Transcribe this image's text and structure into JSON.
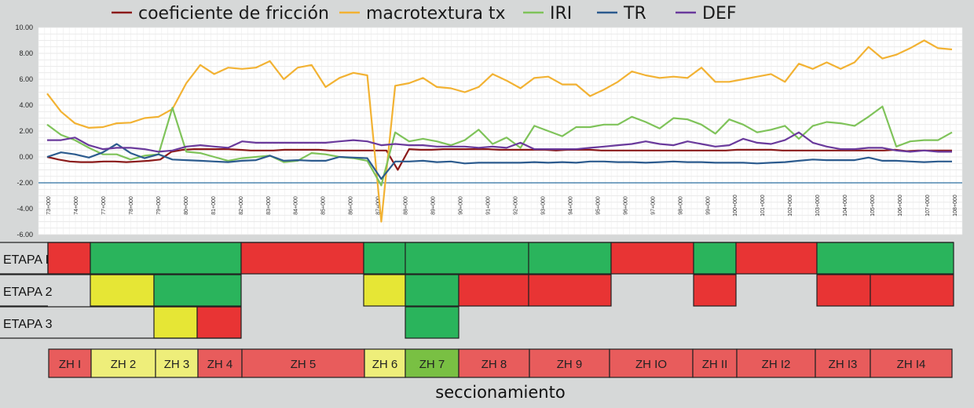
{
  "chart_data": {
    "type": "line",
    "legend": [
      {
        "name": "coeficiente de fricción",
        "color": "#8b1a1a"
      },
      {
        "name": "macrotextura tx",
        "color": "#f2b233"
      },
      {
        "name": "IRI",
        "color": "#7fc35a"
      },
      {
        "name": "TR",
        "color": "#2c5b8e"
      },
      {
        "name": "DEF",
        "color": "#6a3a9c"
      }
    ],
    "legend_position": "top",
    "ylim": [
      -6,
      10
    ],
    "y_ticks": [
      "10.00",
      "8.00",
      "6.00",
      "4.00",
      "2.00",
      "0.00",
      "-2.00",
      "-4.00",
      "-6.00"
    ],
    "x_ticks": [
      "73+000",
      "74+000",
      "77+000",
      "78+000",
      "79+000",
      "80+000",
      "81+000",
      "82+000",
      "83+000",
      "84+000",
      "85+000",
      "86+000",
      "87+000",
      "88+000",
      "89+000",
      "90+000",
      "91+000",
      "92+000",
      "93+000",
      "94+000",
      "95+000",
      "96+000",
      "97+000",
      "98+000",
      "99+000",
      "100+000",
      "101+000",
      "102+000",
      "103+000",
      "104+000",
      "105+000",
      "106+000",
      "107+000",
      "108+000"
    ],
    "threshold_line": {
      "value": -2.0,
      "color": "#2c6fa0"
    },
    "grid": true,
    "series": [
      {
        "name": "coeficiente de fricción",
        "color": "#8b1a1a",
        "values": [
          0.0,
          -0.2,
          -0.35,
          -0.4,
          -0.4,
          -0.35,
          -0.35,
          -0.4,
          -0.35,
          -0.3,
          -0.2,
          0.4,
          0.55,
          0.6,
          0.6,
          0.6,
          0.6,
          0.55,
          0.5,
          0.5,
          0.5,
          0.55,
          0.55,
          0.55,
          0.55,
          0.5,
          0.5,
          0.5,
          0.5,
          0.5,
          0.5,
          -1.0,
          0.6,
          0.55,
          0.55,
          0.6,
          0.6,
          0.6,
          0.6,
          0.6,
          0.55,
          0.55,
          0.55,
          0.55,
          0.55,
          0.5,
          0.55,
          0.55,
          0.55,
          0.5,
          0.5,
          0.5,
          0.5,
          0.5,
          0.5,
          0.5,
          0.5,
          0.5,
          0.5,
          0.5,
          0.5,
          0.55,
          0.55,
          0.55,
          0.55,
          0.5,
          0.5,
          0.5,
          0.5,
          0.5,
          0.5,
          0.5,
          0.5,
          0.5,
          0.5,
          0.55,
          0.45,
          0.5,
          0.5,
          0.5,
          0.5
        ]
      },
      {
        "name": "macrotextura tx",
        "color": "#f2b233",
        "values": [
          4.9,
          3.5,
          2.6,
          2.25,
          2.3,
          2.6,
          2.65,
          3.0,
          3.1,
          3.7,
          5.7,
          7.1,
          6.4,
          6.9,
          6.8,
          6.9,
          7.4,
          6.0,
          6.9,
          7.1,
          5.4,
          6.1,
          6.5,
          6.3,
          -5.0,
          5.5,
          5.7,
          6.1,
          5.4,
          5.3,
          5.0,
          5.4,
          6.4,
          5.9,
          5.3,
          6.1,
          6.2,
          5.6,
          5.6,
          4.7,
          5.2,
          5.8,
          6.6,
          6.3,
          6.1,
          6.2,
          6.1,
          6.9,
          5.8,
          5.8,
          6.0,
          6.2,
          6.4,
          5.8,
          7.2,
          6.8,
          7.3,
          6.8,
          7.3,
          8.5,
          7.6,
          7.9,
          8.4,
          9.0,
          8.4,
          8.3
        ]
      },
      {
        "name": "IRI",
        "color": "#7fc35a",
        "values": [
          2.5,
          1.7,
          1.3,
          0.7,
          0.2,
          0.2,
          -0.2,
          0.1,
          0.2,
          3.8,
          0.4,
          0.3,
          0.0,
          -0.3,
          -0.1,
          0.0,
          0.1,
          -0.4,
          -0.3,
          0.3,
          0.2,
          0.0,
          -0.1,
          -0.3,
          -2.2,
          1.9,
          1.2,
          1.4,
          1.2,
          0.9,
          1.3,
          2.1,
          1.0,
          1.5,
          0.7,
          2.4,
          2.0,
          1.6,
          2.3,
          2.3,
          2.5,
          2.5,
          3.1,
          2.7,
          2.2,
          3.0,
          2.9,
          2.5,
          1.8,
          2.9,
          2.5,
          1.9,
          2.1,
          2.4,
          1.4,
          2.4,
          2.7,
          2.6,
          2.4,
          3.1,
          3.9,
          0.8,
          1.2,
          1.3,
          1.3,
          1.9
        ]
      },
      {
        "name": "TR",
        "color": "#2c5b8e",
        "values": [
          0.0,
          0.35,
          0.2,
          -0.05,
          0.35,
          1.0,
          0.3,
          -0.1,
          0.2,
          -0.2,
          -0.25,
          -0.3,
          -0.35,
          -0.4,
          -0.3,
          -0.25,
          0.1,
          -0.3,
          -0.25,
          -0.3,
          -0.3,
          0.0,
          -0.05,
          -0.1,
          -1.7,
          -0.35,
          -0.35,
          -0.3,
          -0.4,
          -0.35,
          -0.5,
          -0.45,
          -0.45,
          -0.45,
          -0.45,
          -0.4,
          -0.45,
          -0.4,
          -0.45,
          -0.35,
          -0.35,
          -0.4,
          -0.4,
          -0.45,
          -0.4,
          -0.35,
          -0.4,
          -0.4,
          -0.45,
          -0.45,
          -0.45,
          -0.5,
          -0.45,
          -0.4,
          -0.3,
          -0.2,
          -0.25,
          -0.25,
          -0.25,
          -0.05,
          -0.3,
          -0.3,
          -0.35,
          -0.4,
          -0.35,
          -0.35
        ]
      },
      {
        "name": "DEF",
        "color": "#6a3a9c",
        "values": [
          1.3,
          1.3,
          1.5,
          0.9,
          0.6,
          0.7,
          0.7,
          0.6,
          0.4,
          0.5,
          0.8,
          0.9,
          0.8,
          0.7,
          1.2,
          1.1,
          1.1,
          1.1,
          1.1,
          1.1,
          1.1,
          1.2,
          1.3,
          1.2,
          0.9,
          1.0,
          0.9,
          0.9,
          0.8,
          0.8,
          0.8,
          0.7,
          0.8,
          0.7,
          1.1,
          0.6,
          0.6,
          0.6,
          0.6,
          0.7,
          0.8,
          0.9,
          1.0,
          1.2,
          1.0,
          0.9,
          1.2,
          1.0,
          0.8,
          0.9,
          1.4,
          1.1,
          1.0,
          1.3,
          1.9,
          1.1,
          0.8,
          0.6,
          0.6,
          0.7,
          0.7,
          0.5,
          0.4,
          0.5,
          0.4,
          0.4
        ]
      }
    ]
  },
  "etapas": {
    "rows": [
      {
        "label": "ETAPA I",
        "segments": [
          {
            "start": 61,
            "end": 115,
            "color": "#e83434"
          },
          {
            "start": 115,
            "end": 307,
            "color": "#2ab45c"
          },
          {
            "start": 307,
            "end": 463,
            "color": "#e83434"
          },
          {
            "start": 463,
            "end": 516,
            "color": "#2ab45c"
          },
          {
            "start": 516,
            "end": 673,
            "color": "#2ab45c"
          },
          {
            "start": 673,
            "end": 778,
            "color": "#2ab45c"
          },
          {
            "start": 778,
            "end": 883,
            "color": "#e83434"
          },
          {
            "start": 883,
            "end": 937,
            "color": "#2ab45c"
          },
          {
            "start": 937,
            "end": 1040,
            "color": "#e83434"
          },
          {
            "start": 1040,
            "end": 1214,
            "color": "#2ab45c"
          }
        ]
      },
      {
        "label": "ETAPA 2",
        "segments": [
          {
            "start": 115,
            "end": 196,
            "color": "#e6e635"
          },
          {
            "start": 196,
            "end": 307,
            "color": "#2ab45c"
          },
          {
            "start": 463,
            "end": 516,
            "color": "#e6e635"
          },
          {
            "start": 516,
            "end": 584,
            "color": "#2ab45c"
          },
          {
            "start": 584,
            "end": 673,
            "color": "#e83434"
          },
          {
            "start": 673,
            "end": 778,
            "color": "#e83434"
          },
          {
            "start": 883,
            "end": 937,
            "color": "#e83434"
          },
          {
            "start": 1040,
            "end": 1108,
            "color": "#e83434"
          },
          {
            "start": 1108,
            "end": 1214,
            "color": "#e83434"
          }
        ]
      },
      {
        "label": "ETAPA 3",
        "segments": [
          {
            "start": 196,
            "end": 251,
            "color": "#e6e635"
          },
          {
            "start": 251,
            "end": 307,
            "color": "#e83434"
          },
          {
            "start": 516,
            "end": 584,
            "color": "#2ab45c"
          }
        ]
      }
    ]
  },
  "zonas": {
    "items": [
      {
        "label": "ZH I",
        "start": 62,
        "end": 116,
        "color": "#e85c5c"
      },
      {
        "label": "ZH 2",
        "start": 116,
        "end": 198,
        "color": "#eeee7a"
      },
      {
        "label": "ZH 3",
        "start": 198,
        "end": 252,
        "color": "#eeee7a"
      },
      {
        "label": "ZH 4",
        "start": 252,
        "end": 308,
        "color": "#e85c5c"
      },
      {
        "label": "ZH 5",
        "start": 308,
        "end": 464,
        "color": "#e85c5c"
      },
      {
        "label": "ZH 6",
        "start": 464,
        "end": 516,
        "color": "#eeee7a"
      },
      {
        "label": "ZH 7",
        "start": 516,
        "end": 584,
        "color": "#79c043"
      },
      {
        "label": "ZH 8",
        "start": 584,
        "end": 674,
        "color": "#e85c5c"
      },
      {
        "label": "ZH 9",
        "start": 674,
        "end": 776,
        "color": "#e85c5c"
      },
      {
        "label": "ZH IO",
        "start": 776,
        "end": 882,
        "color": "#e85c5c"
      },
      {
        "label": "ZH II",
        "start": 882,
        "end": 938,
        "color": "#e85c5c"
      },
      {
        "label": "ZH I2",
        "start": 938,
        "end": 1038,
        "color": "#e85c5c"
      },
      {
        "label": "ZH I3",
        "start": 1038,
        "end": 1108,
        "color": "#e85c5c"
      },
      {
        "label": "ZH I4",
        "start": 1108,
        "end": 1212,
        "color": "#e85c5c"
      }
    ]
  },
  "footer": {
    "label": "seccionamiento"
  }
}
